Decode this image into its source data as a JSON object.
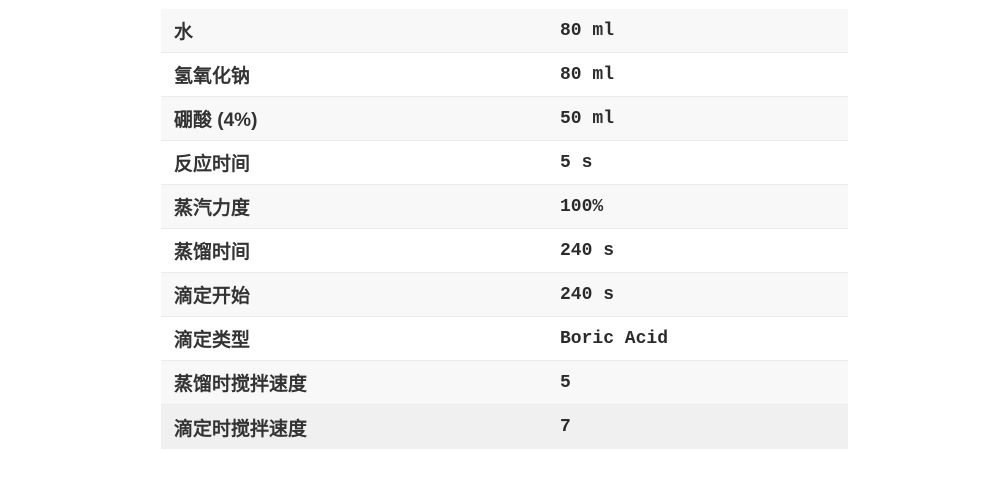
{
  "table": {
    "rows": [
      {
        "label": "水",
        "value": "80 ml"
      },
      {
        "label": "氢氧化钠",
        "value": "80 ml"
      },
      {
        "label": "硼酸 (4%)",
        "value": "50 ml"
      },
      {
        "label": "反应时间",
        "value": "5 s"
      },
      {
        "label": "蒸汽力度",
        "value": "100%"
      },
      {
        "label": "蒸馏时间",
        "value": "240 s"
      },
      {
        "label": "滴定开始",
        "value": "240 s"
      },
      {
        "label": "滴定类型",
        "value": "Boric Acid"
      },
      {
        "label": "蒸馏时搅拌速度",
        "value": "5"
      },
      {
        "label": "滴定时搅拌速度",
        "value": "7"
      }
    ],
    "colors": {
      "row_odd_bg": "#f8f8f8",
      "row_even_bg": "#ffffff",
      "row_last_bg": "#f0f0f0",
      "divider": "#ebebeb",
      "label_text": "#333333",
      "value_text": "#2b2b2b",
      "page_bg": "#ffffff"
    }
  }
}
